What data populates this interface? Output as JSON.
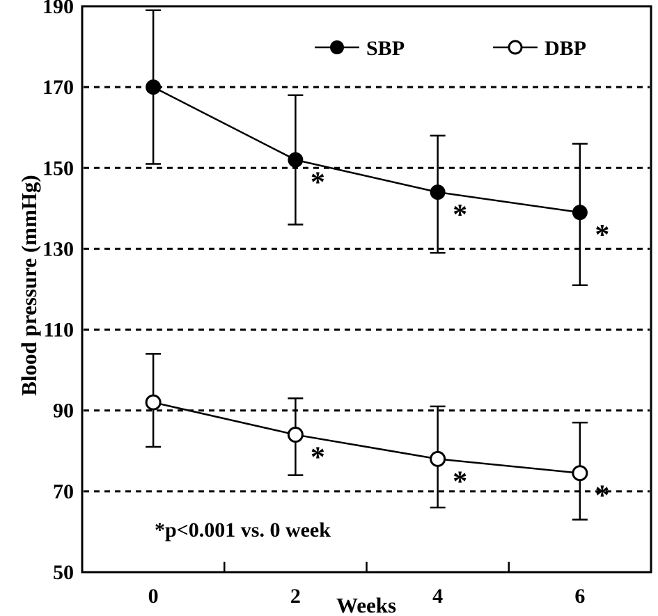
{
  "figure": {
    "background": "#ffffff",
    "ink": "#000000"
  },
  "chart_data": {
    "type": "line",
    "title": "",
    "xlabel": "Weeks",
    "ylabel": "Blood pressure (mmHg)",
    "x": [
      0,
      2,
      4,
      6
    ],
    "x_tick_labels": [
      "0",
      "2",
      "4",
      "6"
    ],
    "y_ticks": [
      50,
      70,
      90,
      110,
      130,
      150,
      170,
      190
    ],
    "ylim": [
      50,
      190
    ],
    "grid": "dashed-horizontal",
    "gridline_values": [
      70,
      90,
      110,
      130,
      150,
      170
    ],
    "legend_position": "top-center-inside",
    "series": [
      {
        "name": "SBP",
        "marker": "filled-circle",
        "values": [
          170,
          152,
          144,
          139
        ],
        "error_upper": [
          189,
          168,
          158,
          156
        ],
        "error_lower": [
          151,
          136,
          129,
          121
        ],
        "significant": [
          false,
          true,
          true,
          true
        ]
      },
      {
        "name": "DBP",
        "marker": "open-circle",
        "values": [
          92,
          84,
          78,
          74.5
        ],
        "error_upper": [
          104,
          93,
          91,
          87
        ],
        "error_lower": [
          81,
          74,
          66,
          63
        ],
        "significant": [
          false,
          true,
          true,
          true
        ]
      }
    ],
    "significance_marker": "*",
    "annotation": "*p<0.001 vs. 0 week"
  }
}
